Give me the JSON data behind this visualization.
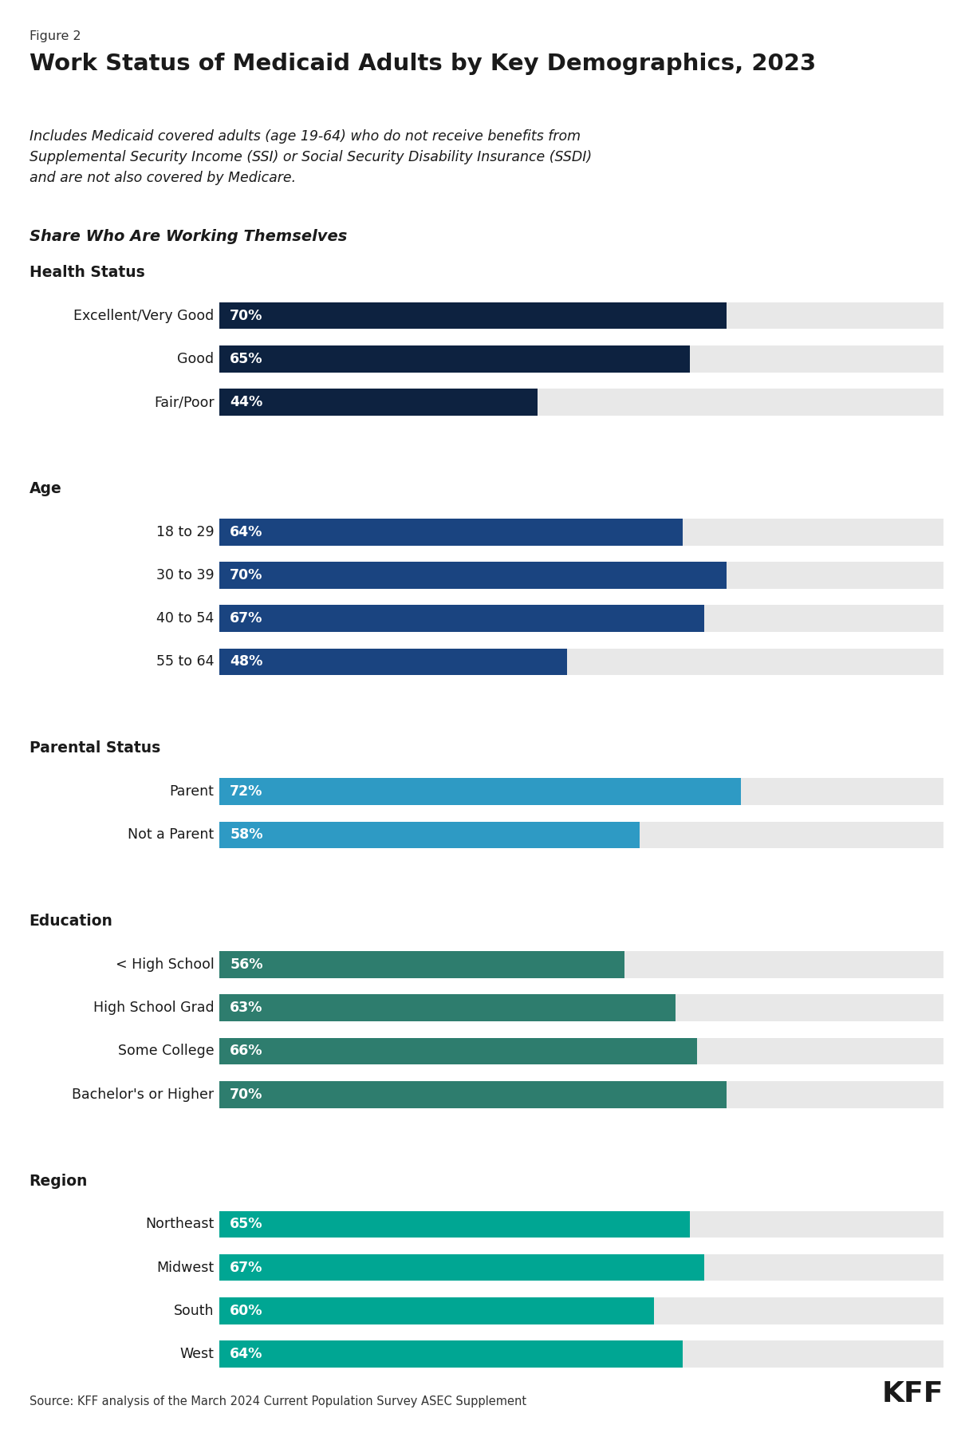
{
  "figure_label": "Figure 2",
  "title": "Work Status of Medicaid Adults by Key Demographics, 2023",
  "subtitle": "Includes Medicaid covered adults (age 19-64) who do not receive benefits from\nSupplemental Security Income (SSI) or Social Security Disability Insurance (SSDI)\nand are not also covered by Medicare.",
  "section_header": "Share Who Are Working Themselves",
  "source": "Source: KFF analysis of the March 2024 Current Population Survey ASEC Supplement",
  "sections": [
    {
      "header": "Health Status",
      "color": "#0d2240",
      "items": [
        {
          "label": "Excellent/Very Good",
          "value": 70
        },
        {
          "label": "Good",
          "value": 65
        },
        {
          "label": "Fair/Poor",
          "value": 44
        }
      ]
    },
    {
      "header": "Age",
      "color": "#1a4480",
      "items": [
        {
          "label": "18 to 29",
          "value": 64
        },
        {
          "label": "30 to 39",
          "value": 70
        },
        {
          "label": "40 to 54",
          "value": 67
        },
        {
          "label": "55 to 64",
          "value": 48
        }
      ]
    },
    {
      "header": "Parental Status",
      "color": "#2e9ac4",
      "items": [
        {
          "label": "Parent",
          "value": 72
        },
        {
          "label": "Not a Parent",
          "value": 58
        }
      ]
    },
    {
      "header": "Education",
      "color": "#2e7d6e",
      "items": [
        {
          "label": "< High School",
          "value": 56
        },
        {
          "label": "High School Grad",
          "value": 63
        },
        {
          "label": "Some College",
          "value": 66
        },
        {
          "label": "Bachelor's or Higher",
          "value": 70
        }
      ]
    },
    {
      "header": "Region",
      "color": "#00a693",
      "items": [
        {
          "label": "Northeast",
          "value": 65
        },
        {
          "label": "Midwest",
          "value": 67
        },
        {
          "label": "South",
          "value": 60
        },
        {
          "label": "West",
          "value": 64
        }
      ]
    }
  ],
  "bar_bg_color": "#e8e8e8",
  "bar_height": 0.62,
  "value_max": 100,
  "background_color": "#ffffff",
  "text_color": "#1a1a1a"
}
